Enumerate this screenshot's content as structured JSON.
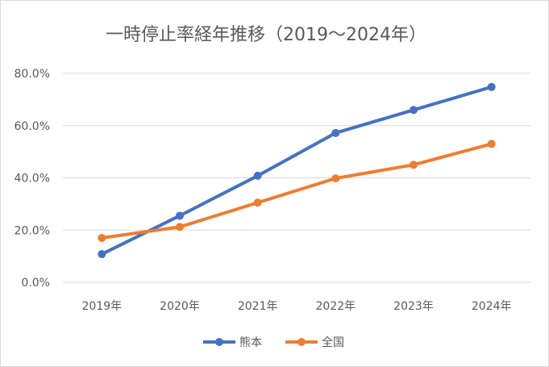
{
  "chart_data": {
    "type": "line",
    "title": "一時停止率経年推移（2019～2024年）",
    "categories": [
      "2019年",
      "2020年",
      "2021年",
      "2022年",
      "2023年",
      "2024年"
    ],
    "ylim": [
      0,
      80
    ],
    "yticks": [
      "0.0%",
      "20.0%",
      "40.0%",
      "60.0%",
      "80.0%"
    ],
    "grid": true,
    "legend_position": "bottom",
    "series": [
      {
        "name": "熊本",
        "values": [
          10.8,
          25.5,
          40.8,
          57.2,
          66.0,
          74.8
        ],
        "color": "#4472c4"
      },
      {
        "name": "全国",
        "values": [
          17.0,
          21.2,
          30.5,
          39.8,
          45.0,
          53.0
        ],
        "color": "#ed7d31"
      }
    ]
  }
}
